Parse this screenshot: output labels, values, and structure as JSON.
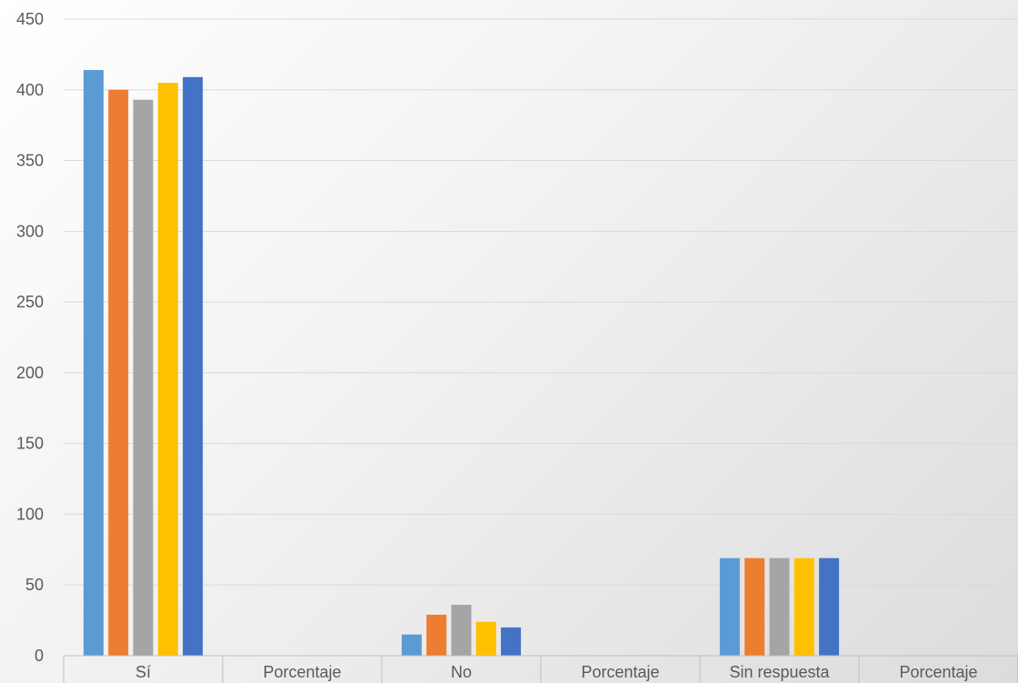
{
  "chart_data": {
    "type": "bar",
    "title": "",
    "xlabel": "",
    "ylabel": "",
    "ylim": [
      0,
      450
    ],
    "yticks": [
      0,
      50,
      100,
      150,
      200,
      250,
      300,
      350,
      400,
      450
    ],
    "grid": true,
    "legend": "none",
    "categories": [
      "Sí",
      "Porcentaje",
      "No",
      "Porcentaje",
      "Sin respuesta",
      "Porcentaje"
    ],
    "series": [
      {
        "color": "#5b9bd5",
        "values": [
          414,
          0,
          15,
          0,
          69,
          0
        ]
      },
      {
        "color": "#ed7d31",
        "values": [
          400,
          0,
          29,
          0,
          69,
          0
        ]
      },
      {
        "color": "#a5a5a5",
        "values": [
          393,
          0,
          36,
          0,
          69,
          0
        ]
      },
      {
        "color": "#ffc000",
        "values": [
          405,
          0,
          24,
          0,
          69,
          0
        ]
      },
      {
        "color": "#4472c4",
        "values": [
          409,
          0,
          20,
          0,
          69,
          0
        ]
      }
    ]
  }
}
